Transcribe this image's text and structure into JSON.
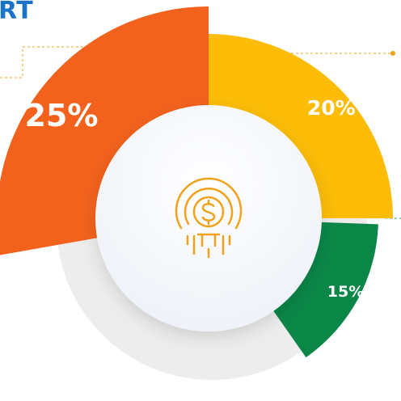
{
  "header": {
    "title_fragment": "RT"
  },
  "chart_data": {
    "type": "pie",
    "variant": "exploded-donut-radial",
    "title": "",
    "slices": [
      {
        "label": "25%",
        "value": 25,
        "color": "#f2621c"
      },
      {
        "label": "20%",
        "value": 20,
        "color": "#fcbc07"
      },
      {
        "label": "15%",
        "value": 15,
        "color": "#0a8747"
      }
    ],
    "center_icon": "dollar-coin-icon",
    "icon_color": "#f0a21c",
    "leader_line_color": "#f0a21c",
    "accent_line_color": "#2a9d8f"
  }
}
